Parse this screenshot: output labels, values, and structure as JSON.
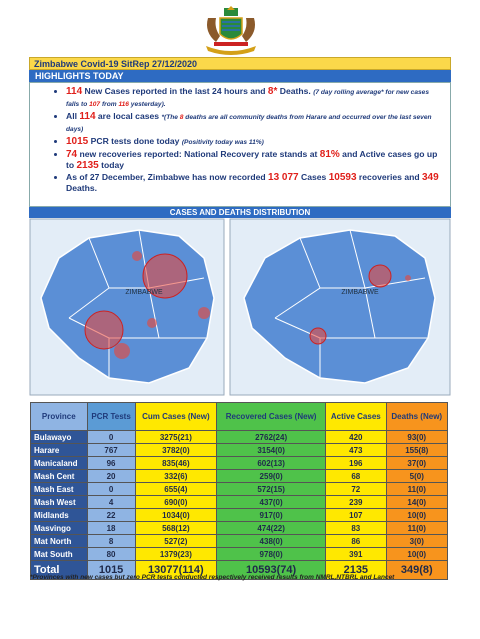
{
  "header": {
    "title": "Zimbabwe Covid-19 SitRep 27/12/2020",
    "section": "HIGHLIGHTS TODAY"
  },
  "highlights": {
    "bullets": [
      [
        "114",
        " New Cases reported in the last 24 hours and ",
        "8*",
        " Deaths. ",
        "(7 day rolling average* for new cases falls to ",
        "107",
        " from ",
        "116",
        " yesterday)."
      ],
      [
        "All ",
        "114",
        " are local cases ",
        "*(The ",
        "8",
        " deaths are all community deaths from Harare and occurred over the last seven days)"
      ],
      [
        "1015",
        " PCR tests done today ",
        "(Positivity today was 11%)"
      ],
      [
        "74",
        " new recoveries reported: National Recovery rate stands at ",
        "81%",
        " and Active cases go up to ",
        "2135",
        " today"
      ],
      [
        "As of 27 December, Zimbabwe has now recorded ",
        "13 077",
        " Cases ",
        "10593",
        " recoveries and ",
        "349",
        " Deaths."
      ]
    ]
  },
  "maps": {
    "title": "CASES AND DEATHS DISTRIBUTION",
    "labels": [
      "ZIMBABWE",
      "ZIMBABWE"
    ]
  },
  "table": {
    "header": [
      "Province",
      "PCR Tests",
      "Cum Cases (New)",
      "Recovered Cases (New)",
      "Active Cases",
      "Deaths (New)"
    ],
    "rows": [
      [
        "Bulawayo",
        "0",
        "3275(21)",
        "2762(24)",
        "420",
        "93(0)"
      ],
      [
        "Harare",
        "767",
        "3782(0)",
        "3154(0)",
        "473",
        "155(8)"
      ],
      [
        "Manicaland",
        "96",
        "835(46)",
        "602(13)",
        "196",
        "37(0)"
      ],
      [
        "Mash Cent",
        "20",
        "332(6)",
        "259(0)",
        "68",
        "5(0)"
      ],
      [
        "Mash East",
        "0",
        "655(4)",
        "572(15)",
        "72",
        "11(0)"
      ],
      [
        "Mash West",
        "4",
        "690(0)",
        "437(0)",
        "239",
        "14(0)"
      ],
      [
        "Midlands",
        "22",
        "1034(0)",
        "917(0)",
        "107",
        "10(0)"
      ],
      [
        "Masvingo",
        "18",
        "568(12)",
        "474(22)",
        "83",
        "11(0)"
      ],
      [
        "Mat North",
        "8",
        "527(2)",
        "438(0)",
        "86",
        "3(0)"
      ],
      [
        "Mat South",
        "80",
        "1379(23)",
        "978(0)",
        "391",
        "10(0)"
      ]
    ],
    "total": [
      "Total",
      "1015",
      "13077(114)",
      "10593(74)",
      "2135",
      "349(8)"
    ]
  },
  "footnote": "*Provinces  with new cases but zero  PCR tests conducted respectively received results from NMRL,NTBRL and Lancet"
}
